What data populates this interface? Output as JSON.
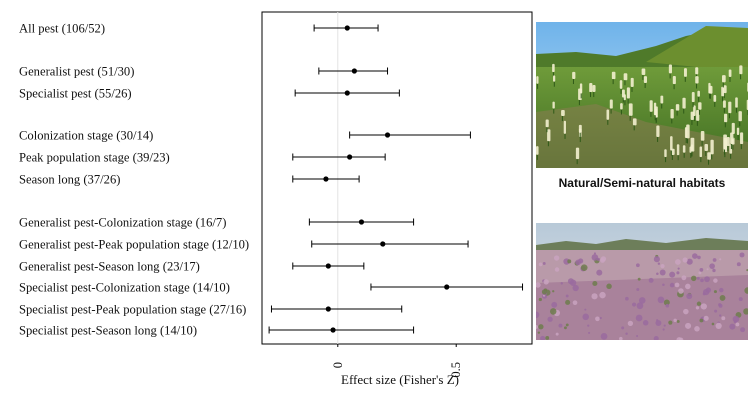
{
  "chart_data": {
    "type": "forest",
    "xlabel": "Effect size (Fisher's  Z)",
    "xlim": [
      -0.32,
      0.82
    ],
    "xticks": [
      0,
      0.5
    ],
    "tick_labels": [
      "0",
      "0.5"
    ],
    "zero_reference_line": true,
    "rows": [
      {
        "label": "All pest (106/52)",
        "estimate": 0.04,
        "ci_low": -0.1,
        "ci_high": 0.17
      },
      {
        "label": "Generalist pest (51/30)",
        "estimate": 0.07,
        "ci_low": -0.08,
        "ci_high": 0.21
      },
      {
        "label": "Specialist pest (55/26)",
        "estimate": 0.04,
        "ci_low": -0.18,
        "ci_high": 0.26
      },
      {
        "label": "Colonization stage (30/14)",
        "estimate": 0.21,
        "ci_low": 0.05,
        "ci_high": 0.56
      },
      {
        "label": "Peak population stage (39/23)",
        "estimate": 0.05,
        "ci_low": -0.19,
        "ci_high": 0.2
      },
      {
        "label": "Season long (37/26)",
        "estimate": -0.05,
        "ci_low": -0.19,
        "ci_high": 0.09
      },
      {
        "label": "Generalist pest-Colonization stage (16/7)",
        "estimate": 0.1,
        "ci_low": -0.12,
        "ci_high": 0.32
      },
      {
        "label": "Generalist pest-Peak population stage (12/10)",
        "estimate": 0.19,
        "ci_low": -0.11,
        "ci_high": 0.55
      },
      {
        "label": "Generalist pest-Season long (23/17)",
        "estimate": -0.04,
        "ci_low": -0.19,
        "ci_high": 0.11
      },
      {
        "label": "Specialist pest-Colonization stage (14/10)",
        "estimate": 0.46,
        "ci_low": 0.14,
        "ci_high": 0.78
      },
      {
        "label": "Specialist pest-Peak population stage (27/16)",
        "estimate": -0.04,
        "ci_low": -0.28,
        "ci_high": 0.27
      },
      {
        "label": "Specialist pest-Season long (14/10)",
        "estimate": -0.02,
        "ci_low": -0.29,
        "ci_high": 0.32
      }
    ]
  },
  "habitat_caption": "Natural/Semi-natural habitats",
  "colors": {
    "marker": "#000000",
    "zero_line": "#e3e3e3",
    "top_photo_sky": "#8ec6ee",
    "top_photo_vegetation": "#5a8e2c",
    "top_photo_flowers": "#f0ecc8",
    "bottom_photo_sky": "#c9d5df",
    "bottom_photo_ground": "#b58ea6",
    "bottom_photo_flowers": "#9b6f9e"
  }
}
